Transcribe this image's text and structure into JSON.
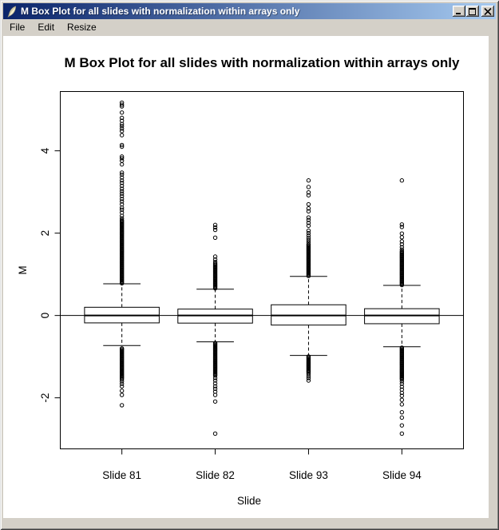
{
  "window": {
    "title": "M Box Plot for all slides with normalization within arrays only",
    "icon": "feather-quill",
    "controls": {
      "minimize": "minimize",
      "maximize": "maximize",
      "close": "close"
    }
  },
  "menu": {
    "items": [
      {
        "label": "File"
      },
      {
        "label": "Edit"
      },
      {
        "label": "Resize"
      }
    ]
  },
  "colors": {
    "titlebar_left": "#0a246a",
    "titlebar_right": "#a6caf0",
    "chrome": "#d4d0c8",
    "canvas": "#ffffff",
    "plot_stroke": "#000000"
  },
  "chart_data": {
    "type": "boxplot",
    "title": "M Box Plot for all slides with normalization within arrays only",
    "xlabel": "Slide",
    "ylabel": "M",
    "ylim": [
      -3.24,
      5.44
    ],
    "yticks": [
      -2,
      0,
      2,
      4
    ],
    "grid": false,
    "legend": false,
    "reference_line_y": 0,
    "whisker_style": "dashed",
    "categories": [
      "Slide 81",
      "Slide 82",
      "Slide 93",
      "Slide 94"
    ],
    "series": [
      {
        "name": "Slide 81",
        "median": 0.0,
        "q1": -0.18,
        "q3": 0.2,
        "whisker_low": -0.73,
        "whisker_high": 0.77,
        "outlier_column_high": [
          0.78,
          2.32
        ],
        "outlier_column_low": [
          -0.78,
          -1.52
        ],
        "outliers_high": [
          2.36,
          2.42,
          2.5,
          2.57,
          2.62,
          2.7,
          2.77,
          2.83,
          2.9,
          2.96,
          3.02,
          3.08,
          3.15,
          3.22,
          3.28,
          3.35,
          3.42,
          3.47,
          3.67,
          3.76,
          3.82,
          3.86,
          4.1,
          4.14,
          4.38,
          4.48,
          4.54,
          4.6,
          4.65,
          4.73,
          4.8,
          4.93,
          5.08,
          5.12,
          5.17
        ],
        "outliers_low": [
          -1.55,
          -1.6,
          -1.66,
          -1.72,
          -1.83,
          -1.93,
          -2.18
        ]
      },
      {
        "name": "Slide 82",
        "median": 0.0,
        "q1": -0.185,
        "q3": 0.155,
        "whisker_low": -0.64,
        "whisker_high": 0.64,
        "outlier_column_high": [
          0.66,
          1.27
        ],
        "outlier_column_low": [
          -0.66,
          -1.46
        ],
        "outliers_high": [
          1.3,
          1.36,
          1.43,
          1.89,
          2.08,
          2.14,
          2.2
        ],
        "outliers_low": [
          -1.52,
          -1.58,
          -1.65,
          -1.72,
          -1.78,
          -1.85,
          -1.93,
          -2.09,
          -2.87
        ]
      },
      {
        "name": "Slide 93",
        "median": 0.0,
        "q1": -0.233,
        "q3": 0.26,
        "whisker_low": -0.97,
        "whisker_high": 0.95,
        "outlier_column_high": [
          0.96,
          1.74
        ],
        "outlier_column_low": [
          -0.98,
          -1.38
        ],
        "outliers_high": [
          1.78,
          1.83,
          1.88,
          1.94,
          2.0,
          2.06,
          2.18,
          2.25,
          2.32,
          2.38,
          2.53,
          2.6,
          2.7,
          2.92,
          2.99,
          3.12,
          3.28
        ],
        "outliers_low": [
          -1.42,
          -1.47,
          -1.52,
          -1.58
        ]
      },
      {
        "name": "Slide 94",
        "median": 0.0,
        "q1": -0.2,
        "q3": 0.165,
        "whisker_low": -0.76,
        "whisker_high": 0.73,
        "outlier_column_high": [
          0.74,
          1.56
        ],
        "outlier_column_low": [
          -0.77,
          -1.55
        ],
        "outliers_high": [
          1.6,
          1.66,
          1.73,
          1.8,
          1.9,
          1.99,
          2.15,
          2.21,
          3.28
        ],
        "outliers_low": [
          -1.6,
          -1.66,
          -1.73,
          -1.8,
          -1.88,
          -1.95,
          -2.05,
          -2.16,
          -2.35,
          -2.48,
          -2.67,
          -2.87
        ]
      }
    ]
  }
}
